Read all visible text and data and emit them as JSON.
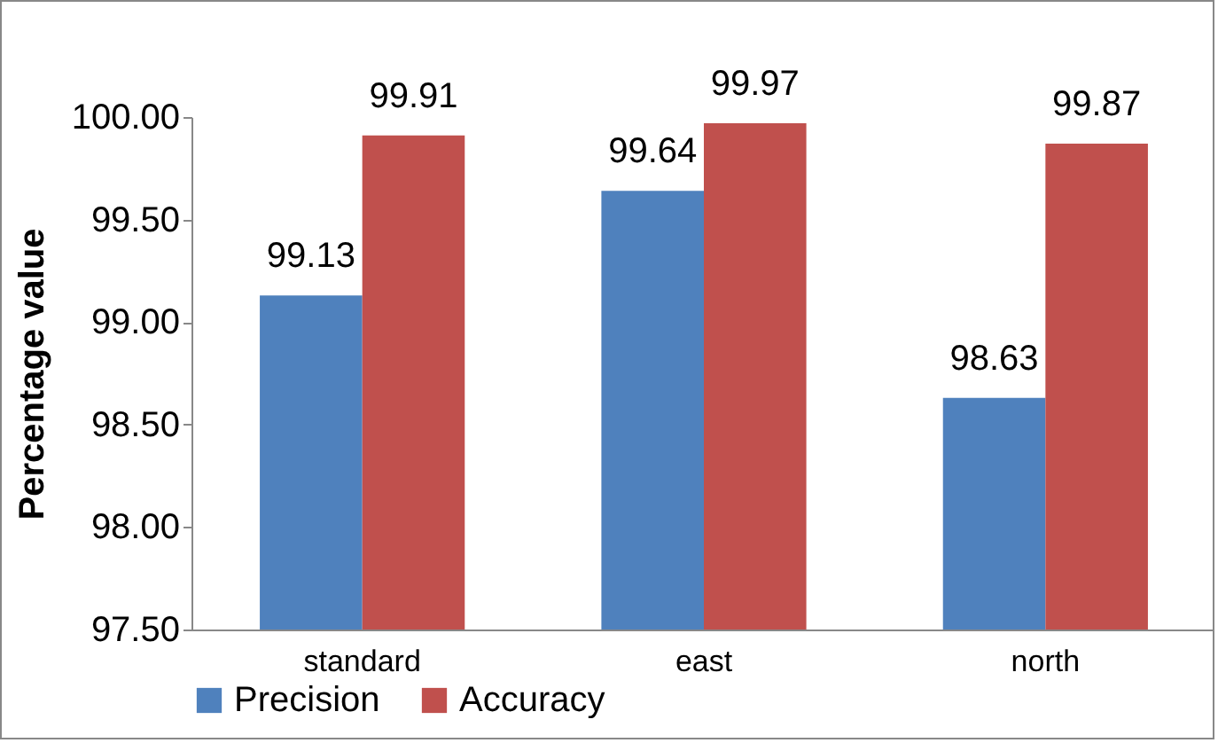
{
  "chart_data": {
    "type": "bar",
    "ylabel": "Percentage value",
    "categories": [
      "standard",
      "east",
      "north"
    ],
    "series": [
      {
        "name": "Precision",
        "color": "#4f81bd",
        "values": [
          99.13,
          99.64,
          98.63
        ]
      },
      {
        "name": "Accuracy",
        "color": "#c0504d",
        "values": [
          99.91,
          99.97,
          99.87
        ]
      }
    ],
    "ylim": [
      97.5,
      100.0
    ],
    "yticks": [
      {
        "value": 97.5,
        "label": "97.50"
      },
      {
        "value": 98.0,
        "label": "98.00"
      },
      {
        "value": 98.5,
        "label": "98.50"
      },
      {
        "value": 99.0,
        "label": "99.00"
      },
      {
        "value": 99.5,
        "label": "99.50"
      },
      {
        "value": 100.0,
        "label": "100.00"
      }
    ],
    "data_labels": true,
    "grid": false,
    "legend": "bottom"
  }
}
